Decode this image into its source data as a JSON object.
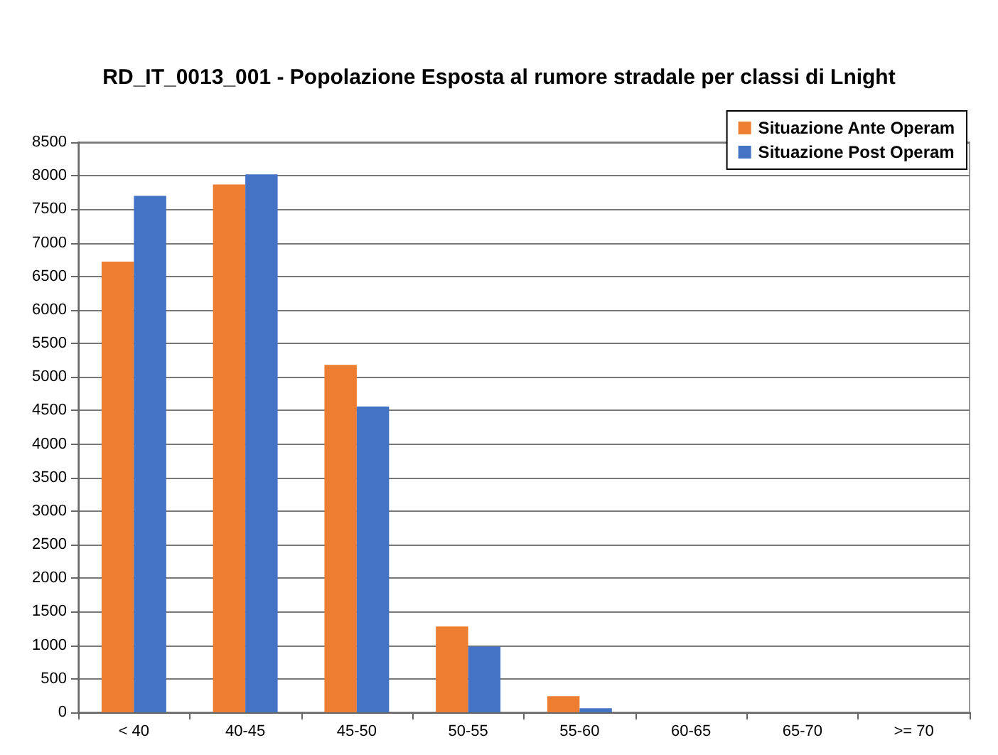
{
  "chart_data": {
    "type": "bar",
    "title": "RD_IT_0013_001 - Popolazione Esposta al rumore stradale per classi di Lnight",
    "categories": [
      "< 40",
      "40-45",
      "45-50",
      "50-55",
      "55-60",
      "60-65",
      "65-70",
      ">= 70"
    ],
    "series": [
      {
        "name": "Situazione Ante Operam",
        "color": "#ed7d31",
        "values": [
          6720,
          7870,
          5180,
          1280,
          240,
          0,
          0,
          0
        ]
      },
      {
        "name": "Situazione Post Operam",
        "color": "#4472c4",
        "values": [
          7700,
          8020,
          4560,
          980,
          60,
          0,
          0,
          0
        ]
      }
    ],
    "ylim": [
      0,
      8500
    ],
    "yticks": [
      0,
      500,
      1000,
      1500,
      2000,
      2500,
      3000,
      3500,
      4000,
      4500,
      5000,
      5500,
      6000,
      6500,
      7000,
      7500,
      8000,
      8500
    ],
    "grid": "y",
    "legend": "top right"
  }
}
